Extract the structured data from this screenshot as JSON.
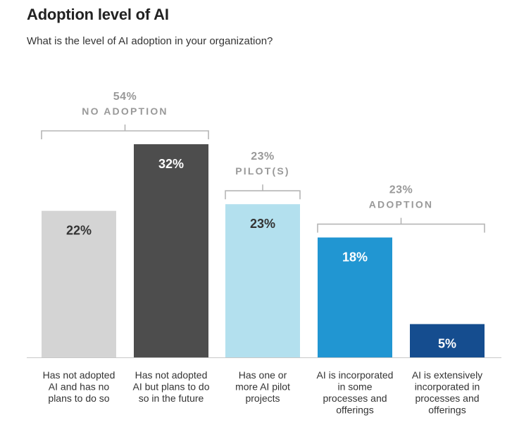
{
  "header": {
    "title": "Adoption level of AI",
    "subtitle": "What is the level of AI adoption in your organization?"
  },
  "colors": {
    "bar1": "#d4d4d4",
    "bar2": "#4d4d4d",
    "bar3": "#b3e0ee",
    "bar4": "#2196d2",
    "bar5": "#154d8f",
    "label_dark": "#333333",
    "label_light": "#ffffff",
    "bracket": "#b5b5b5"
  },
  "chart_data": {
    "type": "bar",
    "title": "Adoption level of AI",
    "subtitle": "What is the level of AI adoption in your organization?",
    "categories": [
      [
        "Has not adopted",
        "AI and has no",
        "plans to do so"
      ],
      [
        "Has not adopted",
        "AI but plans to do",
        "so in the future"
      ],
      [
        "Has one or",
        "more AI pilot",
        "projects"
      ],
      [
        "AI is incorporated",
        "in some",
        "processes and",
        "offerings"
      ],
      [
        "AI is extensively",
        "incorporated in",
        "processes and",
        "offerings"
      ]
    ],
    "values": [
      22,
      32,
      23,
      18,
      5
    ],
    "value_labels": [
      "22%",
      "32%",
      "23%",
      "18%",
      "5%"
    ],
    "ylim": [
      0,
      32
    ],
    "groups": [
      {
        "percent": "54%",
        "name": "NO ADOPTION",
        "first": 0,
        "last": 1
      },
      {
        "percent": "23%",
        "name": "PILOT(S)",
        "first": 2,
        "last": 2
      },
      {
        "percent": "23%",
        "name": "ADOPTION",
        "first": 3,
        "last": 4
      }
    ]
  }
}
